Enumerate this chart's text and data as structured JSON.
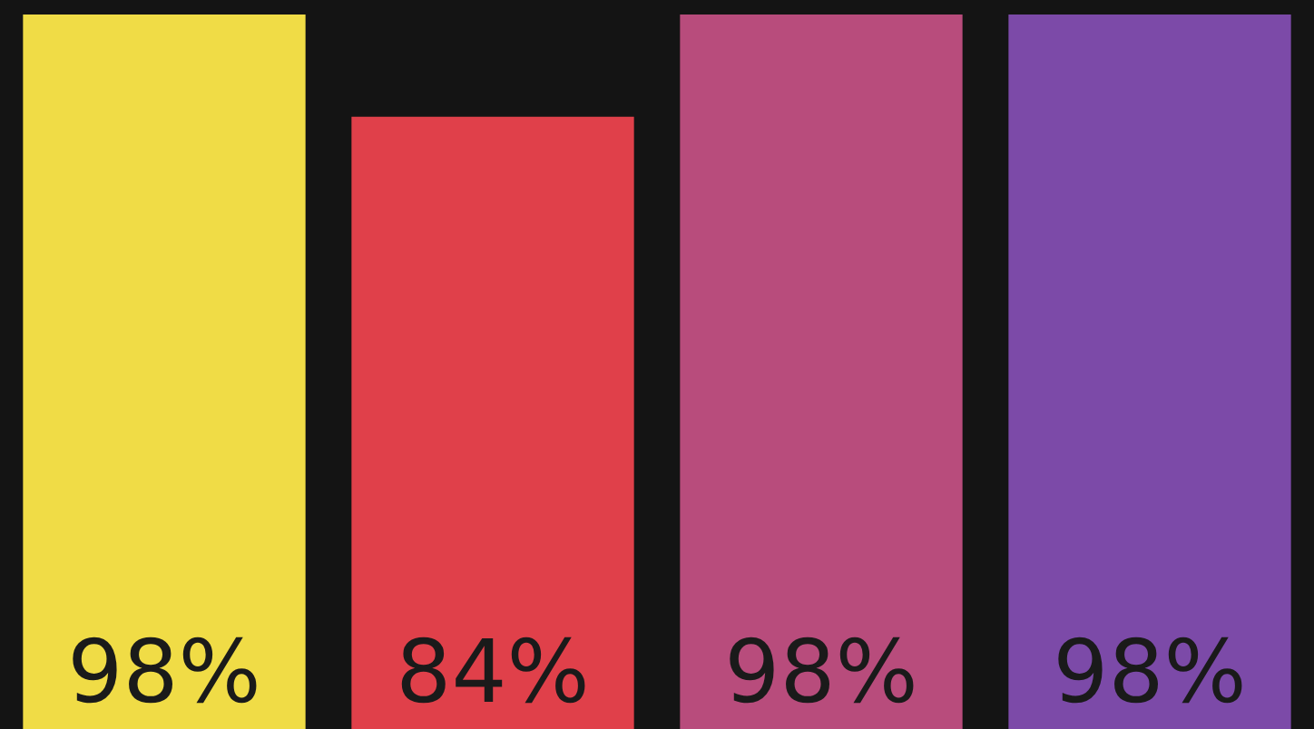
{
  "chart_data": {
    "type": "bar",
    "categories": [
      null,
      null,
      null,
      null
    ],
    "values": [
      98,
      84,
      98,
      98
    ],
    "colors": [
      "#f0dc46",
      "#e0404a",
      "#b84c7c",
      "#7c4aa8"
    ],
    "value_labels": [
      "98%",
      "84%",
      "98%",
      "98%"
    ],
    "ylim": [
      0,
      100
    ],
    "tick_labels": false,
    "grid": false,
    "legend": false
  }
}
